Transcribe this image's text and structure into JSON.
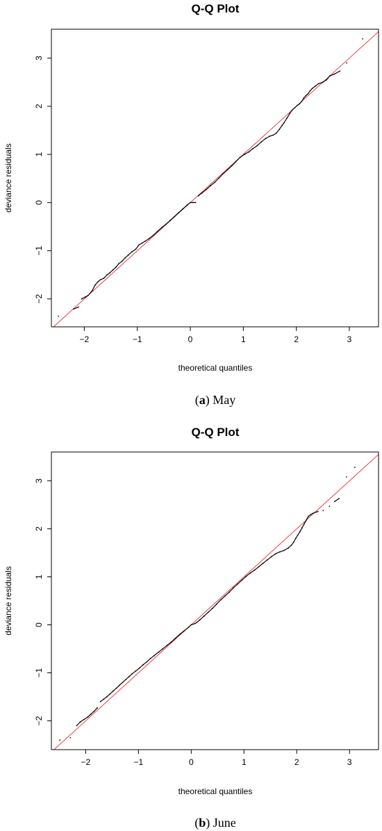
{
  "captions": [
    {
      "open": "(",
      "letter": "a",
      "close": ")",
      "text": " May"
    },
    {
      "open": "(",
      "letter": "b",
      "close": ")",
      "text": " June"
    }
  ],
  "colors": {
    "points": "#000000",
    "reference_line": "#e8404a",
    "frame": "#000000"
  },
  "chart_data": [
    {
      "type": "scatter",
      "title": "Q-Q Plot",
      "xlabel": "theoretical quantiles",
      "ylabel": "deviance residuals",
      "xlim": [
        -2.62,
        3.55
      ],
      "ylim": [
        -2.58,
        3.6
      ],
      "xticks": [
        -2,
        -1,
        0,
        1,
        2,
        3
      ],
      "yticks": [
        -2,
        -1,
        0,
        1,
        2,
        3
      ],
      "grid": false,
      "reference_line": {
        "slope": 1,
        "intercept": 0
      },
      "points": [
        [
          -2.49,
          -2.36
        ],
        [
          -2.2,
          -2.21
        ],
        [
          -2.11,
          -2.17
        ],
        [
          -2.05,
          -2.0
        ],
        [
          -1.98,
          -1.96
        ],
        [
          -1.93,
          -1.93
        ],
        [
          -1.85,
          -1.83
        ],
        [
          -1.8,
          -1.72
        ],
        [
          -1.74,
          -1.64
        ],
        [
          -1.69,
          -1.6
        ],
        [
          -1.63,
          -1.57
        ],
        [
          -1.57,
          -1.5
        ],
        [
          -1.52,
          -1.46
        ],
        [
          -1.46,
          -1.4
        ],
        [
          -1.4,
          -1.34
        ],
        [
          -1.35,
          -1.27
        ],
        [
          -1.29,
          -1.22
        ],
        [
          -1.23,
          -1.15
        ],
        [
          -1.17,
          -1.09
        ],
        [
          -1.1,
          -1.02
        ],
        [
          -1.03,
          -0.97
        ],
        [
          -0.97,
          -0.88
        ],
        [
          -0.91,
          -0.84
        ],
        [
          -0.85,
          -0.8
        ],
        [
          -0.78,
          -0.75
        ],
        [
          -0.7,
          -0.68
        ],
        [
          -0.62,
          -0.6
        ],
        [
          -0.54,
          -0.52
        ],
        [
          -0.46,
          -0.45
        ],
        [
          -0.38,
          -0.37
        ],
        [
          -0.3,
          -0.29
        ],
        [
          -0.22,
          -0.21
        ],
        [
          -0.14,
          -0.13
        ],
        [
          -0.06,
          -0.05
        ],
        [
          0.0,
          0.0
        ],
        [
          0.05,
          0.0
        ],
        [
          0.1,
          0.0
        ],
        [
          0.15,
          0.14
        ],
        [
          0.22,
          0.2
        ],
        [
          0.3,
          0.27
        ],
        [
          0.38,
          0.35
        ],
        [
          0.46,
          0.42
        ],
        [
          0.54,
          0.51
        ],
        [
          0.62,
          0.6
        ],
        [
          0.7,
          0.68
        ],
        [
          0.78,
          0.76
        ],
        [
          0.86,
          0.85
        ],
        [
          0.94,
          0.94
        ],
        [
          1.02,
          1.0
        ],
        [
          1.1,
          1.05
        ],
        [
          1.18,
          1.12
        ],
        [
          1.26,
          1.18
        ],
        [
          1.34,
          1.26
        ],
        [
          1.42,
          1.33
        ],
        [
          1.5,
          1.38
        ],
        [
          1.56,
          1.4
        ],
        [
          1.62,
          1.44
        ],
        [
          1.68,
          1.52
        ],
        [
          1.73,
          1.6
        ],
        [
          1.77,
          1.66
        ],
        [
          1.82,
          1.75
        ],
        [
          1.87,
          1.84
        ],
        [
          1.92,
          1.92
        ],
        [
          1.97,
          1.97
        ],
        [
          2.02,
          2.02
        ],
        [
          2.06,
          2.05
        ],
        [
          2.1,
          2.1
        ],
        [
          2.14,
          2.17
        ],
        [
          2.18,
          2.22
        ],
        [
          2.22,
          2.26
        ],
        [
          2.26,
          2.32
        ],
        [
          2.3,
          2.37
        ],
        [
          2.36,
          2.42
        ],
        [
          2.42,
          2.47
        ],
        [
          2.5,
          2.5
        ],
        [
          2.57,
          2.55
        ],
        [
          2.63,
          2.63
        ],
        [
          2.72,
          2.67
        ],
        [
          2.82,
          2.73
        ],
        [
          2.95,
          2.9
        ],
        [
          3.25,
          3.4
        ]
      ]
    },
    {
      "type": "scatter",
      "title": "Q-Q Plot",
      "xlabel": "theoretical quantiles",
      "ylabel": "deviance residuals",
      "xlim": [
        -2.65,
        3.55
      ],
      "ylim": [
        -2.6,
        3.6
      ],
      "xticks": [
        -2,
        -1,
        0,
        1,
        2,
        3
      ],
      "yticks": [
        -2,
        -1,
        0,
        1,
        2,
        3
      ],
      "grid": false,
      "reference_line": {
        "slope": 1,
        "intercept": 0
      },
      "points": [
        [
          -2.49,
          -2.4
        ],
        [
          -2.29,
          -2.35
        ],
        [
          -2.17,
          -2.1
        ],
        [
          -2.1,
          -2.02
        ],
        [
          -2.03,
          -1.97
        ],
        [
          -1.96,
          -1.92
        ],
        [
          -1.9,
          -1.86
        ],
        [
          -1.84,
          -1.8
        ],
        [
          -1.78,
          -1.73
        ],
        [
          -1.72,
          -1.6
        ],
        [
          -1.66,
          -1.55
        ],
        [
          -1.6,
          -1.5
        ],
        [
          -1.54,
          -1.44
        ],
        [
          -1.48,
          -1.38
        ],
        [
          -1.42,
          -1.32
        ],
        [
          -1.36,
          -1.26
        ],
        [
          -1.3,
          -1.2
        ],
        [
          -1.24,
          -1.14
        ],
        [
          -1.18,
          -1.08
        ],
        [
          -1.12,
          -1.02
        ],
        [
          -1.05,
          -0.96
        ],
        [
          -0.98,
          -0.9
        ],
        [
          -0.91,
          -0.83
        ],
        [
          -0.84,
          -0.77
        ],
        [
          -0.77,
          -0.7
        ],
        [
          -0.7,
          -0.64
        ],
        [
          -0.62,
          -0.57
        ],
        [
          -0.54,
          -0.5
        ],
        [
          -0.46,
          -0.43
        ],
        [
          -0.38,
          -0.36
        ],
        [
          -0.3,
          -0.28
        ],
        [
          -0.22,
          -0.2
        ],
        [
          -0.14,
          -0.13
        ],
        [
          -0.06,
          -0.06
        ],
        [
          0.0,
          0.0
        ],
        [
          0.08,
          0.03
        ],
        [
          0.16,
          0.1
        ],
        [
          0.24,
          0.18
        ],
        [
          0.32,
          0.26
        ],
        [
          0.4,
          0.34
        ],
        [
          0.48,
          0.43
        ],
        [
          0.56,
          0.52
        ],
        [
          0.64,
          0.6
        ],
        [
          0.72,
          0.68
        ],
        [
          0.8,
          0.77
        ],
        [
          0.88,
          0.85
        ],
        [
          0.96,
          0.93
        ],
        [
          1.04,
          1.01
        ],
        [
          1.12,
          1.08
        ],
        [
          1.2,
          1.14
        ],
        [
          1.28,
          1.21
        ],
        [
          1.36,
          1.28
        ],
        [
          1.44,
          1.35
        ],
        [
          1.52,
          1.42
        ],
        [
          1.6,
          1.48
        ],
        [
          1.68,
          1.52
        ],
        [
          1.76,
          1.55
        ],
        [
          1.84,
          1.6
        ],
        [
          1.9,
          1.66
        ],
        [
          1.94,
          1.72
        ],
        [
          1.98,
          1.8
        ],
        [
          2.02,
          1.87
        ],
        [
          2.06,
          1.94
        ],
        [
          2.1,
          2.02
        ],
        [
          2.14,
          2.1
        ],
        [
          2.18,
          2.18
        ],
        [
          2.22,
          2.26
        ],
        [
          2.27,
          2.3
        ],
        [
          2.32,
          2.33
        ],
        [
          2.4,
          2.36
        ],
        [
          2.5,
          2.38
        ],
        [
          2.62,
          2.47
        ],
        [
          2.72,
          2.57
        ],
        [
          2.8,
          2.63
        ],
        [
          2.94,
          3.08
        ],
        [
          3.1,
          3.28
        ]
      ]
    }
  ]
}
